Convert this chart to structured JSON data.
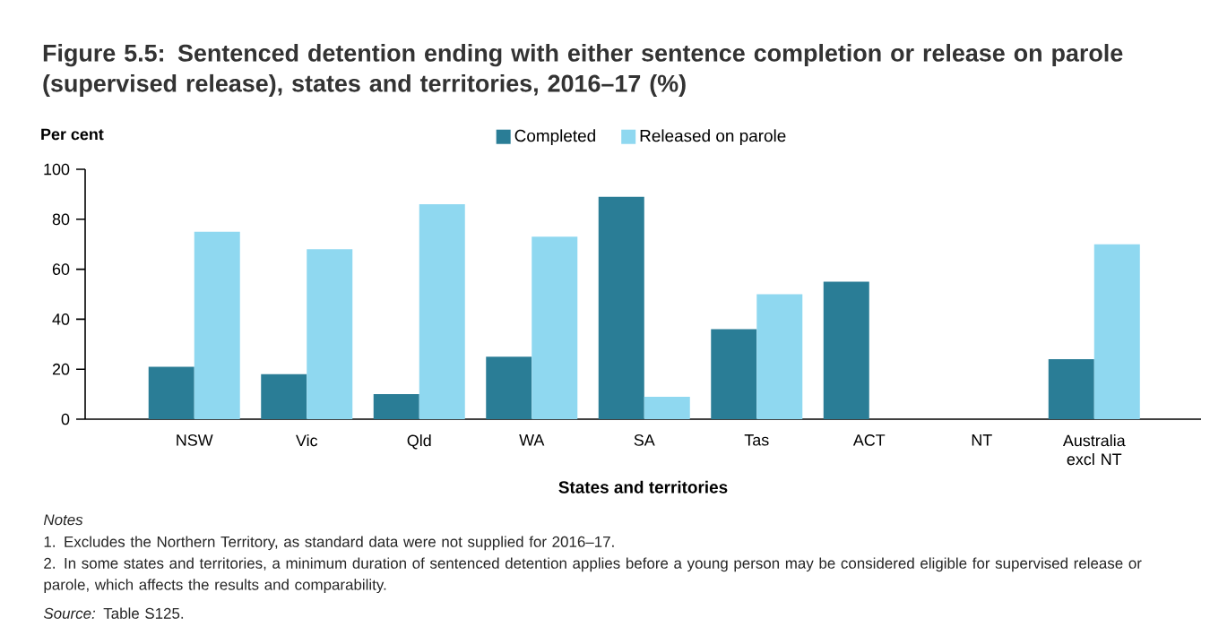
{
  "chart_data": {
    "type": "bar",
    "title": "Figure 5.5: Sentenced detention ending with either sentence completion or release on parole (supervised release), states and territories, 2016–17 (%)",
    "ylabel": "Per cent",
    "xlabel": "States and territories",
    "categories": [
      "NSW",
      "Vic",
      "Qld",
      "WA",
      "SA",
      "Tas",
      "ACT",
      "NT",
      "Australia excl NT"
    ],
    "series": [
      {
        "name": "Completed",
        "color": "#2a7d96",
        "values": [
          21,
          18,
          10,
          25,
          89,
          36,
          55,
          null,
          24
        ]
      },
      {
        "name": "Released on parole",
        "color": "#8fd8f0",
        "values": [
          75,
          68,
          86,
          73,
          9,
          50,
          null,
          null,
          70
        ]
      }
    ],
    "ylim": [
      0,
      100
    ],
    "yticks": [
      0,
      20,
      40,
      60,
      80,
      100
    ],
    "legend": "top",
    "grid": false,
    "annotations": [
      "Notes",
      "1. Excludes the Northern Territory, as standard data were not supplied for 2016–17.",
      "2. In some states and territories, a minimum duration of sentenced detention applies before a young person may be considered eligible for supervised release or parole, which affects the results and comparability.",
      "*Source:* Table S125."
    ]
  }
}
